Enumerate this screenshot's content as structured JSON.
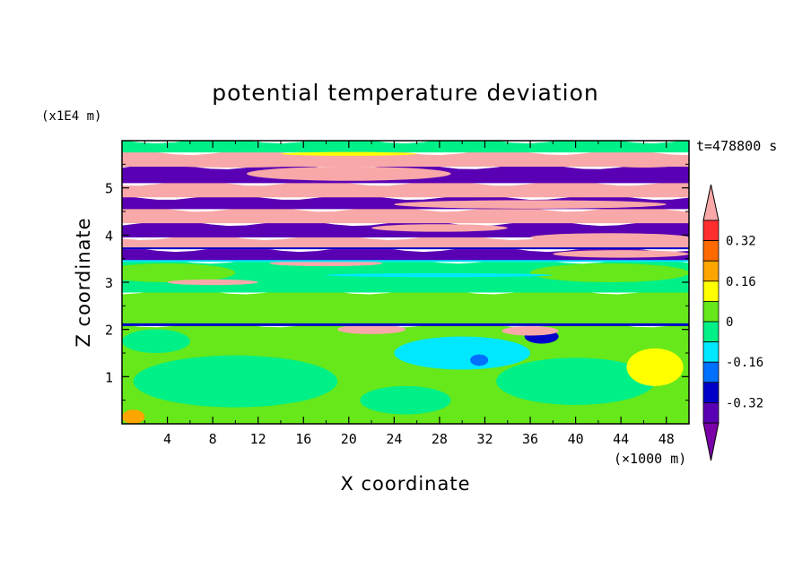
{
  "chart_data": {
    "type": "heatmap",
    "title": "potential temperature deviation",
    "xlabel": "X coordinate",
    "ylabel": "Z coordinate",
    "x_unit": "(×1000 m)",
    "y_unit": "(x1E4 m)",
    "time_label": "t=478800 s",
    "xlim": [
      0,
      50
    ],
    "ylim": [
      0,
      6
    ],
    "x_ticks": [
      "4",
      "8",
      "12",
      "16",
      "20",
      "24",
      "28",
      "32",
      "36",
      "40",
      "44",
      "48"
    ],
    "y_ticks": [
      "1",
      "2",
      "3",
      "4",
      "5"
    ],
    "colorbar": {
      "levels": [
        "0.32",
        "0.16",
        "0",
        "-0.16",
        "-0.32"
      ],
      "colors": [
        "#f8a8a8",
        "#ff2e2e",
        "#ff6a00",
        "#ffa500",
        "#ffff00",
        "#66e81a",
        "#00f088",
        "#00e8ff",
        "#0070ff",
        "#0000c8",
        "#5a00b4",
        "#7a00a8"
      ]
    },
    "bands": [
      {
        "z0": 0.0,
        "z1": 2.1,
        "color": "#66e81a"
      },
      {
        "z0": 2.1,
        "z1": 2.8,
        "color": "#66e81a"
      },
      {
        "z0": 2.8,
        "z1": 3.45,
        "color": "#00f088"
      },
      {
        "z0": 3.45,
        "z1": 3.7,
        "color": "#5a00b4"
      },
      {
        "z0": 3.7,
        "z1": 3.95,
        "color": "#f8a8a8"
      },
      {
        "z0": 3.95,
        "z1": 4.25,
        "color": "#5a00b4"
      },
      {
        "z0": 4.25,
        "z1": 4.55,
        "color": "#f8a8a8"
      },
      {
        "z0": 4.55,
        "z1": 4.8,
        "color": "#5a00b4"
      },
      {
        "z0": 4.8,
        "z1": 5.1,
        "color": "#f8a8a8"
      },
      {
        "z0": 5.1,
        "z1": 5.45,
        "color": "#5a00b4"
      },
      {
        "z0": 5.45,
        "z1": 5.75,
        "color": "#f8a8a8"
      },
      {
        "z0": 5.75,
        "z1": 6.0,
        "color": "#00f088"
      }
    ],
    "patches": [
      {
        "x": 10,
        "z": 0.9,
        "rx": 9,
        "rz": 0.55,
        "color": "#00f088"
      },
      {
        "x": 40,
        "z": 0.9,
        "rx": 7,
        "rz": 0.5,
        "color": "#00f088"
      },
      {
        "x": 25,
        "z": 0.5,
        "rx": 4,
        "rz": 0.3,
        "color": "#00f088"
      },
      {
        "x": 3,
        "z": 1.75,
        "rx": 3,
        "rz": 0.25,
        "color": "#00f088"
      },
      {
        "x": 47,
        "z": 1.2,
        "rx": 2.5,
        "rz": 0.4,
        "color": "#ffff00"
      },
      {
        "x": 1,
        "z": 0.15,
        "rx": 1,
        "rz": 0.15,
        "color": "#ffa500"
      },
      {
        "x": 30,
        "z": 1.5,
        "rx": 6,
        "rz": 0.35,
        "color": "#00e8ff"
      },
      {
        "x": 31.5,
        "z": 1.35,
        "rx": 0.8,
        "rz": 0.12,
        "color": "#0070ff"
      },
      {
        "x": 37,
        "z": 1.85,
        "rx": 1.5,
        "rz": 0.15,
        "color": "#0000c8"
      },
      {
        "x": 22,
        "z": 2.0,
        "rx": 3,
        "rz": 0.1,
        "color": "#f8a8a8"
      },
      {
        "x": 36,
        "z": 1.97,
        "rx": 2.5,
        "rz": 0.1,
        "color": "#f8a8a8"
      },
      {
        "x": 4,
        "z": 3.2,
        "rx": 6,
        "rz": 0.2,
        "color": "#66e81a"
      },
      {
        "x": 43,
        "z": 3.2,
        "rx": 7,
        "rz": 0.2,
        "color": "#66e81a"
      },
      {
        "x": 8,
        "z": 3.0,
        "rx": 4,
        "rz": 0.06,
        "color": "#f8a8a8"
      },
      {
        "x": 18,
        "z": 3.4,
        "rx": 5,
        "rz": 0.06,
        "color": "#f8a8a8"
      },
      {
        "x": 44,
        "z": 3.6,
        "rx": 6,
        "rz": 0.08,
        "color": "#f8a8a8"
      },
      {
        "x": 28,
        "z": 3.15,
        "rx": 10,
        "rz": 0.04,
        "color": "#00e8ff"
      },
      {
        "x": 20,
        "z": 5.3,
        "rx": 9,
        "rz": 0.15,
        "color": "#f8a8a8"
      },
      {
        "x": 46,
        "z": 5.55,
        "rx": 4,
        "rz": 0.12,
        "color": "#f8a8a8"
      },
      {
        "x": 10,
        "z": 5.55,
        "rx": 8,
        "rz": 0.12,
        "color": "#f8a8a8"
      },
      {
        "x": 20,
        "z": 5.72,
        "rx": 6,
        "rz": 0.04,
        "color": "#ffff00"
      },
      {
        "x": 36,
        "z": 4.65,
        "rx": 12,
        "rz": 0.09,
        "color": "#f8a8a8"
      },
      {
        "x": 28,
        "z": 4.15,
        "rx": 6,
        "rz": 0.08,
        "color": "#f8a8a8"
      },
      {
        "x": 43,
        "z": 3.95,
        "rx": 7,
        "rz": 0.09,
        "color": "#f8a8a8"
      }
    ],
    "lines": [
      {
        "z": 2.1,
        "color": "#0000c8",
        "w": 3
      },
      {
        "z": 2.8,
        "color": "#00f088",
        "w": 2
      },
      {
        "z": 3.45,
        "color": "#00e8ff",
        "w": 2
      },
      {
        "z": 3.72,
        "color": "#0000c8",
        "w": 2
      }
    ]
  }
}
